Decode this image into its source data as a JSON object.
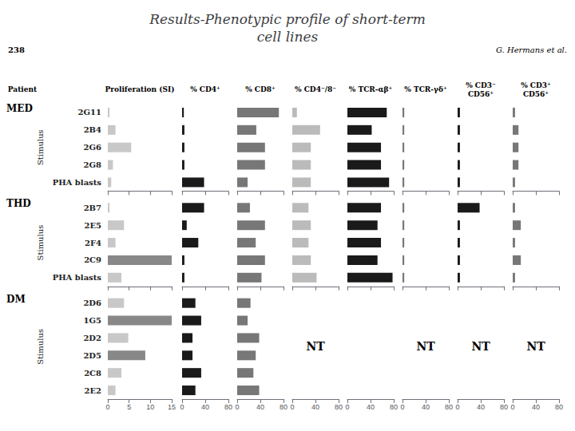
{
  "chart_data": {
    "type": "bar",
    "orientation": "horizontal",
    "title": "Results-Phenotypic profile of short-term\ncell lines",
    "annotations": [
      "238",
      "G. Hermans et al."
    ],
    "group_label": "Patient",
    "ylabel": "Stimulus",
    "grid": false,
    "panels": [
      {
        "title": "Proliferation (SI)",
        "xlim": [
          0,
          15
        ],
        "xticks": [
          0,
          5,
          10,
          15
        ]
      },
      {
        "title": "% CD4⁺",
        "xlim": [
          0,
          80
        ],
        "xticks": [
          0,
          40,
          80
        ]
      },
      {
        "title": "% CD8⁺",
        "xlim": [
          0,
          80
        ],
        "xticks": [
          0,
          40,
          80
        ]
      },
      {
        "title": "% CD4⁻/8⁻",
        "xlim": [
          0,
          80
        ],
        "xticks": [
          0,
          40,
          80
        ]
      },
      {
        "title": "% TCR-αβ⁺",
        "xlim": [
          0,
          80
        ],
        "xticks": [
          0,
          40,
          80
        ]
      },
      {
        "title": "% TCR-γδ⁺",
        "xlim": [
          0,
          80
        ],
        "xticks": [
          0,
          40,
          80
        ]
      },
      {
        "title": "% CD3⁻\nCD56⁺",
        "xlim": [
          0,
          80
        ],
        "xticks": [
          0,
          40,
          80
        ]
      },
      {
        "title": "% CD3⁺\nCD56⁺",
        "xlim": [
          0,
          80
        ],
        "xticks": [
          0,
          40,
          80
        ]
      }
    ],
    "groups": [
      {
        "name": "MED",
        "categories": [
          "2G11",
          "2B4",
          "2G6",
          "2G8",
          "PHA blasts"
        ],
        "series": [
          {
            "values": [
              0.4,
              1.8,
              5.5,
              1.2,
              0.8
            ],
            "colors": [
              "#C8C8C8",
              "#C8C8C8",
              "#C8C8C8",
              "#C8C8C8",
              "#C8C8C8"
            ]
          },
          {
            "values": [
              3,
              4,
              4,
              4,
              38
            ],
            "color": "#1A1A1A"
          },
          {
            "values": [
              72,
              33,
              48,
              48,
              18
            ],
            "color": "#777777"
          },
          {
            "values": [
              8,
              48,
              32,
              32,
              32
            ],
            "color": "#BBBBBB"
          },
          {
            "values": [
              68,
              42,
              58,
              58,
              72
            ],
            "color": "#1A1A1A"
          },
          {
            "values": [
              3,
              3,
              3,
              3,
              3
            ],
            "color": "#777777"
          },
          {
            "values": [
              4,
              4,
              4,
              4,
              4
            ],
            "color": "#1A1A1A"
          },
          {
            "values": [
              4,
              10,
              10,
              10,
              4
            ],
            "color": "#777777"
          }
        ]
      },
      {
        "name": "THD",
        "categories": [
          "2B7",
          "2E5",
          "2F4",
          "2C9",
          "PHA blasts"
        ],
        "series": [
          {
            "values": [
              0.4,
              3.8,
              1.8,
              15.0,
              3.2
            ],
            "colors": [
              "#C8C8C8",
              "#C8C8C8",
              "#C8C8C8",
              "#888888",
              "#C8C8C8"
            ]
          },
          {
            "values": [
              38,
              8,
              28,
              4,
              4
            ],
            "color": "#1A1A1A"
          },
          {
            "values": [
              22,
              48,
              32,
              48,
              42
            ],
            "color": "#777777"
          },
          {
            "values": [
              28,
              32,
              28,
              32,
              42
            ],
            "color": "#BBBBBB"
          },
          {
            "values": [
              58,
              52,
              58,
              52,
              78
            ],
            "color": "#1A1A1A"
          },
          {
            "values": [
              3,
              3,
              3,
              3,
              3
            ],
            "color": "#777777"
          },
          {
            "values": [
              38,
              4,
              4,
              4,
              4
            ],
            "color": "#1A1A1A"
          },
          {
            "values": [
              4,
              14,
              4,
              14,
              4
            ],
            "color": "#777777"
          }
        ]
      },
      {
        "name": "DM",
        "categories": [
          "2D6",
          "1G5",
          "2D2",
          "2D5",
          "2C8",
          "2E2"
        ],
        "series": [
          {
            "values": [
              3.8,
              15.0,
              4.8,
              8.8,
              3.2,
              1.8
            ],
            "colors": [
              "#C8C8C8",
              "#888888",
              "#C8C8C8",
              "#888888",
              "#C8C8C8",
              "#C8C8C8"
            ]
          },
          {
            "values": [
              23,
              33,
              18,
              18,
              33,
              23
            ],
            "color": "#1A1A1A"
          },
          {
            "values": [
              23,
              18,
              38,
              32,
              28,
              38
            ],
            "color": "#777777"
          },
          {
            "values": [
              null,
              null,
              null,
              null,
              null,
              null
            ],
            "annotation": "NT"
          },
          {
            "values": [
              null,
              null,
              null,
              null,
              null,
              null
            ],
            "color": "#1A1A1A"
          },
          {
            "values": [
              null,
              null,
              null,
              null,
              null,
              null
            ],
            "annotation": "NT"
          },
          {
            "values": [
              null,
              null,
              null,
              null,
              null,
              null
            ],
            "annotation": "NT"
          },
          {
            "values": [
              null,
              null,
              null,
              null,
              null,
              null
            ],
            "annotation": "NT"
          }
        ]
      }
    ]
  }
}
